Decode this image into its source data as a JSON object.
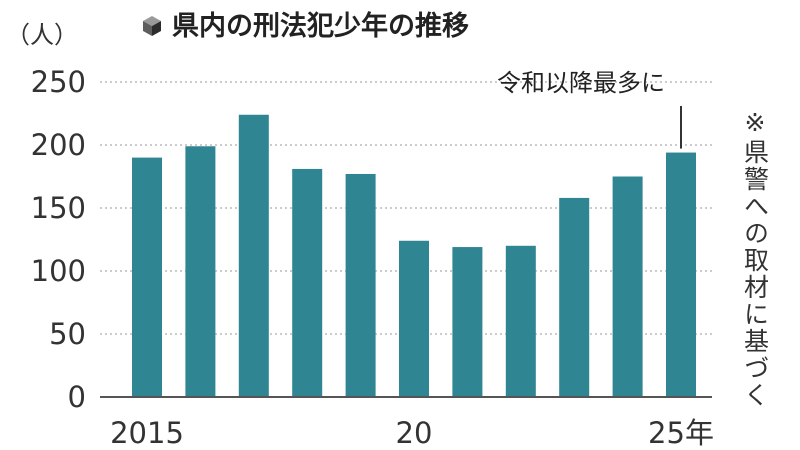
{
  "chart_data": {
    "type": "bar",
    "title": "県内の刑法犯少年の推移",
    "unit_label": "（人）",
    "x": [
      2015,
      2016,
      2017,
      2018,
      2019,
      2020,
      2021,
      2022,
      2023,
      2024,
      2025
    ],
    "values": [
      190,
      199,
      224,
      181,
      177,
      124,
      119,
      120,
      158,
      175,
      194
    ],
    "x_tick_labels": [
      {
        "index": 0,
        "label": "2015"
      },
      {
        "index": 5,
        "label": "20"
      },
      {
        "index": 10,
        "label": "25年"
      }
    ],
    "ylim": [
      0,
      250
    ],
    "yticks": [
      0,
      50,
      100,
      150,
      200,
      250
    ],
    "grid": true,
    "bar_color": "#2f8591",
    "annotation": {
      "text": "令和以降最多に",
      "index": 10
    },
    "note": "※県警への取材に基づく"
  }
}
